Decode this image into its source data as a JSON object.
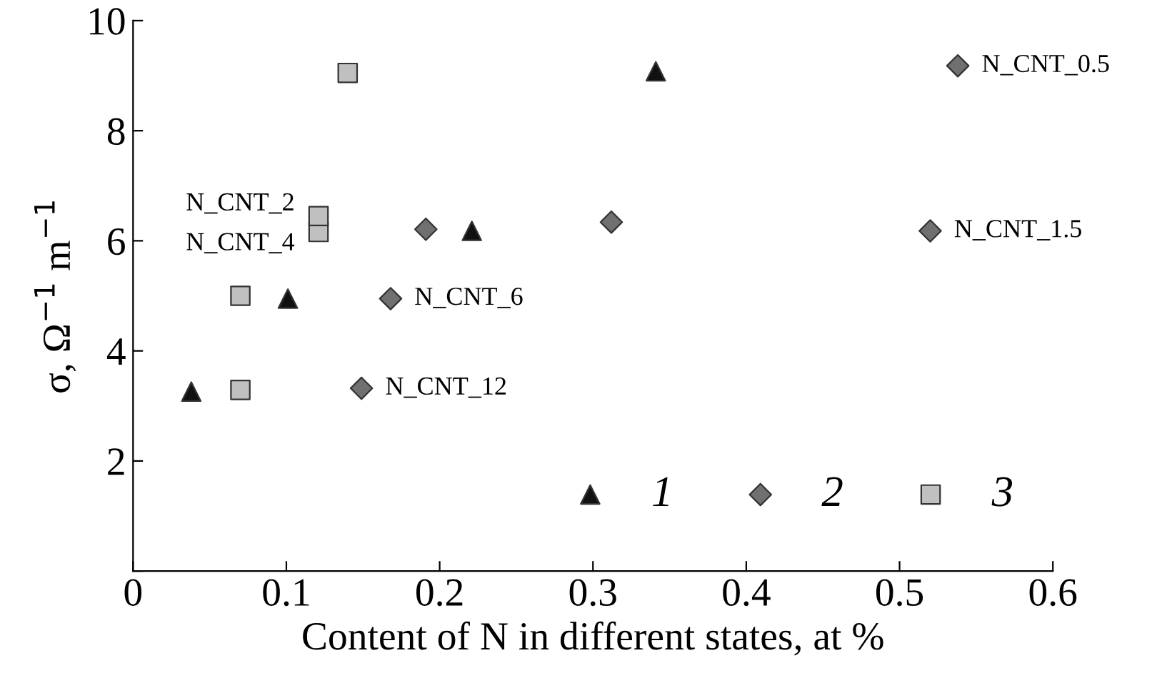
{
  "chart_data": {
    "type": "scatter",
    "xlabel": "Content of N in different states, at %",
    "ylabel": "σ, Ω$^{−1}$ m$^{−1}$",
    "xlim": [
      0,
      0.6
    ],
    "ylim": [
      0,
      10
    ],
    "xticks": [
      0,
      0.1,
      0.2,
      0.3,
      0.4,
      0.5,
      0.6
    ],
    "yticks": [
      {
        "value": 0,
        "label": null
      },
      2,
      4,
      6,
      8,
      10
    ],
    "grid": false,
    "legend": "bottom right",
    "series": [
      {
        "name": "1",
        "color": "#111111",
        "marker": "triangle",
        "x": [
          0.038,
          0.101,
          0.221,
          0.341
        ],
        "values": [
          3.26,
          4.95,
          6.18,
          9.08
        ]
      },
      {
        "name": "2",
        "color": "#707070",
        "marker": "diamond",
        "x": [
          0.149,
          0.168,
          0.191,
          0.312,
          0.52,
          0.538
        ],
        "values": [
          3.32,
          4.95,
          6.21,
          6.34,
          6.18,
          9.18
        ]
      },
      {
        "name": "3",
        "color": "#c0c0c0",
        "marker": "square",
        "x": [
          0.07,
          0.07,
          0.121,
          0.121,
          0.14
        ],
        "values": [
          3.29,
          5.0,
          6.16,
          6.45,
          9.05
        ]
      }
    ],
    "annotations": [
      {
        "text": "N_CNT_0.5",
        "x": 0.538,
        "y": 9.18
      },
      {
        "text": "N_CNT_1.5",
        "x": 0.52,
        "y": 6.18
      },
      {
        "text": "N_CNT_6",
        "x": 0.168,
        "y": 4.95
      },
      {
        "text": "N_CNT_12",
        "x": 0.149,
        "y": 3.32
      },
      {
        "text": "N_CNT_2",
        "x": 0.121,
        "y": 6.45
      },
      {
        "text": "N_CNT_4",
        "x": 0.121,
        "y": 6.16
      }
    ]
  }
}
